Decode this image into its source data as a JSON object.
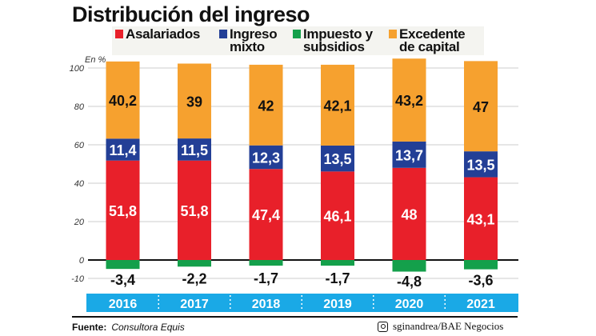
{
  "chart_data": {
    "type": "bar",
    "stacked": true,
    "title": "Distribución del ingreso",
    "unit_label": "En %",
    "categories": [
      "2016",
      "2017",
      "2018",
      "2019",
      "2020",
      "2021"
    ],
    "series": [
      {
        "name": "Asalariados",
        "color": "#e8202a",
        "values": [
          51.8,
          51.8,
          47.4,
          46.1,
          48,
          43.1
        ],
        "labels": [
          "51,8",
          "51,8",
          "47,4",
          "46,1",
          "48",
          "43,1"
        ]
      },
      {
        "name": "Ingreso mixto",
        "color": "#233f96",
        "values": [
          11.4,
          11.5,
          12.3,
          13.5,
          13.7,
          13.5
        ],
        "labels": [
          "11,4",
          "11,5",
          "12,3",
          "13,5",
          "13,7",
          "13,5"
        ]
      },
      {
        "name": "Impuesto y subsidios",
        "color": "#14a04b",
        "values": [
          -3.4,
          -2.2,
          -1.7,
          -1.7,
          -4.8,
          -3.6
        ],
        "labels": [
          "-3,4",
          "-2,2",
          "-1,7",
          "-1,7",
          "-4,8",
          "-3,6"
        ]
      },
      {
        "name": "Excedente de capital",
        "color": "#f6a12f",
        "values": [
          40.2,
          39,
          42,
          42.1,
          43.2,
          47
        ],
        "labels": [
          "40,2",
          "39",
          "42",
          "42,1",
          "43,2",
          "47"
        ]
      }
    ],
    "yticks": [
      -10,
      0,
      20,
      40,
      60,
      80,
      100
    ],
    "ylim": [
      -10,
      100
    ],
    "grid": true,
    "legend": "top",
    "category_band_color": "#1aa9e6"
  },
  "legend_items": [
    {
      "line1": "Asalariados",
      "line2": "",
      "color": "#e8202a"
    },
    {
      "line1": "Ingreso",
      "line2": "mixto",
      "color": "#233f96"
    },
    {
      "line1": "Impuesto y",
      "line2": "subsidios",
      "color": "#14a04b"
    },
    {
      "line1": "Excedente",
      "line2": "de capital",
      "color": "#f6a12f"
    }
  ],
  "footer": {
    "source_label": "Fuente:",
    "source": "Consultora Equis",
    "credit_icon": "instagram-icon",
    "credit": "sginandrea/BAE Negocios"
  }
}
